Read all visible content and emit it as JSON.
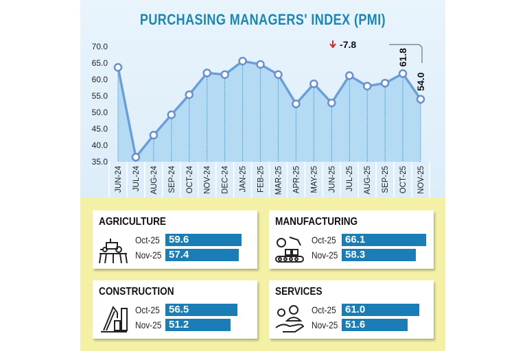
{
  "chart_data": {
    "type": "area",
    "title": "PURCHASING MANAGERS' INDEX (PMI)",
    "categories": [
      "JUN-24",
      "JUL-24",
      "AUG-24",
      "SEP-24",
      "OCT-24",
      "NOV-24",
      "DEC-24",
      "JAN-25",
      "FEB-25",
      "MAR-25",
      "APR-25",
      "MAY-25",
      "JUN-25",
      "JUL-25",
      "AUG-25",
      "SEP-25",
      "OCT-25",
      "NOV-25"
    ],
    "values": [
      63.7,
      36.4,
      43.1,
      49.3,
      55.4,
      62.0,
      61.5,
      65.6,
      64.6,
      61.5,
      52.6,
      58.7,
      52.9,
      61.2,
      58.0,
      58.9,
      61.8,
      54.0
    ],
    "ylim": [
      35,
      70
    ],
    "yticks": [
      "35.0",
      "40.0",
      "45.0",
      "50.0",
      "55.0",
      "60.0",
      "65.0",
      "70.0"
    ],
    "data_labels": {
      "OCT-25": "61.8",
      "NOV-25": "54.0"
    },
    "annotation": {
      "text": "-7.8",
      "direction": "down",
      "color": "#d7262b"
    },
    "line_color": "#6b9fd8",
    "fill_color": "#a9d5f3",
    "grid": false
  },
  "sectors": [
    {
      "name": "AGRICULTURE",
      "icon": "tractor-field-icon",
      "rows": [
        {
          "label": "Oct-25",
          "value": 59.6,
          "text": "59.6"
        },
        {
          "label": "Nov-25",
          "value": 57.4,
          "text": "57.4"
        }
      ]
    },
    {
      "name": "MANUFACTURING",
      "icon": "robot-arm-conveyor-icon",
      "rows": [
        {
          "label": "Oct-25",
          "value": 66.1,
          "text": "66.1"
        },
        {
          "label": "Nov-25",
          "value": 58.3,
          "text": "58.3"
        }
      ]
    },
    {
      "name": "CONSTRUCTION",
      "icon": "crane-building-icon",
      "rows": [
        {
          "label": "Oct-25",
          "value": 56.5,
          "text": "56.5"
        },
        {
          "label": "Nov-25",
          "value": 51.2,
          "text": "51.2"
        }
      ]
    },
    {
      "name": "SERVICES",
      "icon": "service-hand-icon",
      "rows": [
        {
          "label": "Oct-25",
          "value": 61.0,
          "text": "61.0"
        },
        {
          "label": "Nov-25",
          "value": 51.6,
          "text": "51.6"
        }
      ]
    }
  ],
  "colors": {
    "title": "#1b86b8",
    "bar": "#1a7db6",
    "background_bottom": "#f4f1a6"
  }
}
